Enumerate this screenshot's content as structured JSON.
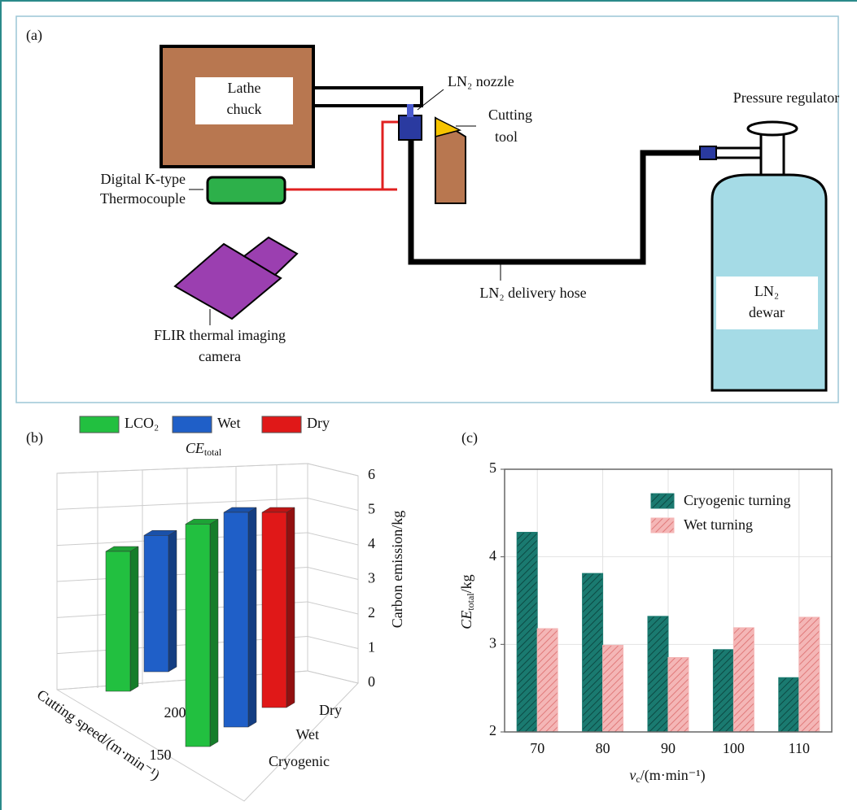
{
  "panel_a": {
    "label": "(a)",
    "lathe_chuck": [
      "Lathe",
      "chuck"
    ],
    "nozzle": "LN₂ nozzle",
    "cutting_tool": [
      "Cutting",
      "tool"
    ],
    "pressure_regulator": "Pressure regulator",
    "thermocouple": [
      "Digital K-type",
      "Thermocouple"
    ],
    "camera": [
      "FLIR thermal imaging",
      "camera"
    ],
    "hose": "LN₂ delivery hose",
    "dewar": [
      "LN₂",
      "dewar"
    ]
  },
  "chart_data": [
    {
      "type": "bar3d",
      "panel_label": "(b)",
      "title": {
        "symbol": "CE",
        "subscript": "total"
      },
      "categories": [
        "200",
        "150"
      ],
      "depth_categories": [
        "Cryogenic",
        "Wet",
        "Dry"
      ],
      "series": [
        {
          "name": "LCO₂",
          "color": "#22c040",
          "values": [
            4.0,
            5.7
          ]
        },
        {
          "name": "Wet",
          "color": "#1f5fc8",
          "values": [
            3.9,
            5.5
          ]
        },
        {
          "name": "Dry",
          "color": "#e01818",
          "values": [
            null,
            5.0
          ]
        }
      ],
      "zlim": [
        0,
        6
      ],
      "zticks": [
        0,
        1,
        2,
        3,
        4,
        5,
        6
      ],
      "z_label": "Carbon emission/kg",
      "x_label": "Cutting speed/(m·min⁻¹)"
    },
    {
      "type": "bar",
      "panel_label": "(c)",
      "categories": [
        "70",
        "80",
        "90",
        "100",
        "110"
      ],
      "series": [
        {
          "name": "Cryogenic turning",
          "color": "#1a7a70",
          "values": [
            4.28,
            3.81,
            3.32,
            2.94,
            2.62
          ]
        },
        {
          "name": "Wet turning",
          "color": "#f4b6b6",
          "values": [
            3.18,
            2.99,
            2.85,
            3.19,
            3.31
          ]
        }
      ],
      "ylim": [
        2,
        5
      ],
      "yticks": [
        2,
        3,
        4,
        5
      ],
      "grid": true,
      "x_label": {
        "symbol": "v",
        "subscript": "c",
        "rest": "/(m·min⁻¹)"
      },
      "y_label": {
        "symbol": "CE",
        "subscript": "total",
        "rest": "/kg"
      }
    }
  ]
}
